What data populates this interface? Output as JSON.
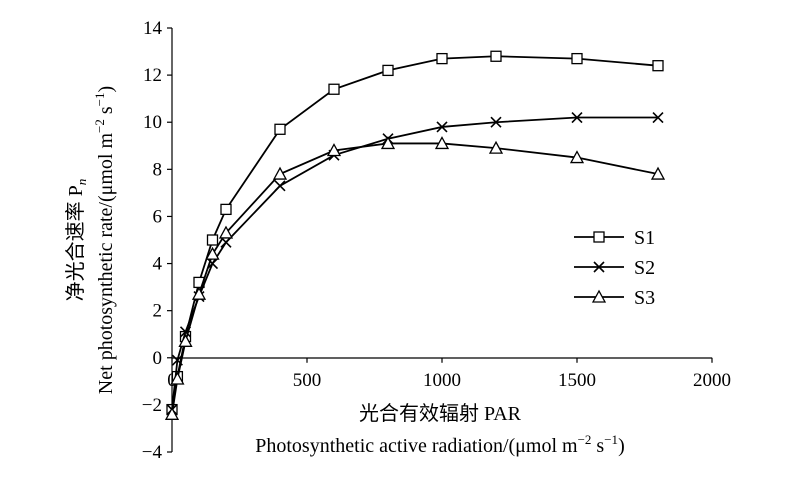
{
  "chart_data": {
    "type": "line",
    "x_axis": {
      "label_cn": "光合有效辐射 PAR",
      "label_en": "Photosynthetic active radiation/(μmol m",
      "label_en_sup1": "−2",
      "label_en_mid": " s",
      "label_en_sup2": "−1",
      "label_en_end": ")",
      "range": [
        0,
        2000
      ],
      "ticks": [
        "0",
        "500",
        "1000",
        "1500",
        "2000"
      ]
    },
    "y_axis": {
      "label_cn": "净光合速率 P",
      "label_cn_sub": "n",
      "label_en": "Net photosynthetic rate/(μmol m",
      "label_en_sup1": "−2",
      "label_en_mid": " s",
      "label_en_sup2": "−1",
      "label_en_end": ")",
      "range": [
        -4,
        14
      ],
      "ticks": [
        "14",
        "12",
        "10",
        "8",
        "6",
        "4",
        "2",
        "0",
        "−2",
        "−4"
      ]
    },
    "legend_position": "right",
    "series": [
      {
        "name": "S1",
        "marker": "square",
        "x": [
          0,
          20,
          50,
          100,
          150,
          200,
          400,
          600,
          800,
          1000,
          1200,
          1500,
          1800
        ],
        "y": [
          -2.2,
          -0.8,
          0.9,
          3.2,
          5.0,
          6.3,
          9.7,
          11.4,
          12.2,
          12.7,
          12.8,
          12.7,
          12.4
        ]
      },
      {
        "name": "S2",
        "marker": "cross",
        "x": [
          0,
          20,
          50,
          100,
          150,
          200,
          400,
          600,
          800,
          1000,
          1200,
          1500,
          1800
        ],
        "y": [
          -2.2,
          -0.1,
          1.1,
          2.6,
          4.0,
          4.9,
          7.3,
          8.6,
          9.3,
          9.8,
          10.0,
          10.2,
          10.2
        ]
      },
      {
        "name": "S3",
        "marker": "triangle",
        "x": [
          0,
          20,
          50,
          100,
          150,
          200,
          400,
          600,
          800,
          1000,
          1200,
          1500,
          1800
        ],
        "y": [
          -2.4,
          -0.9,
          0.7,
          2.7,
          4.4,
          5.3,
          7.8,
          8.8,
          9.1,
          9.1,
          8.9,
          8.5,
          7.8
        ]
      }
    ]
  }
}
